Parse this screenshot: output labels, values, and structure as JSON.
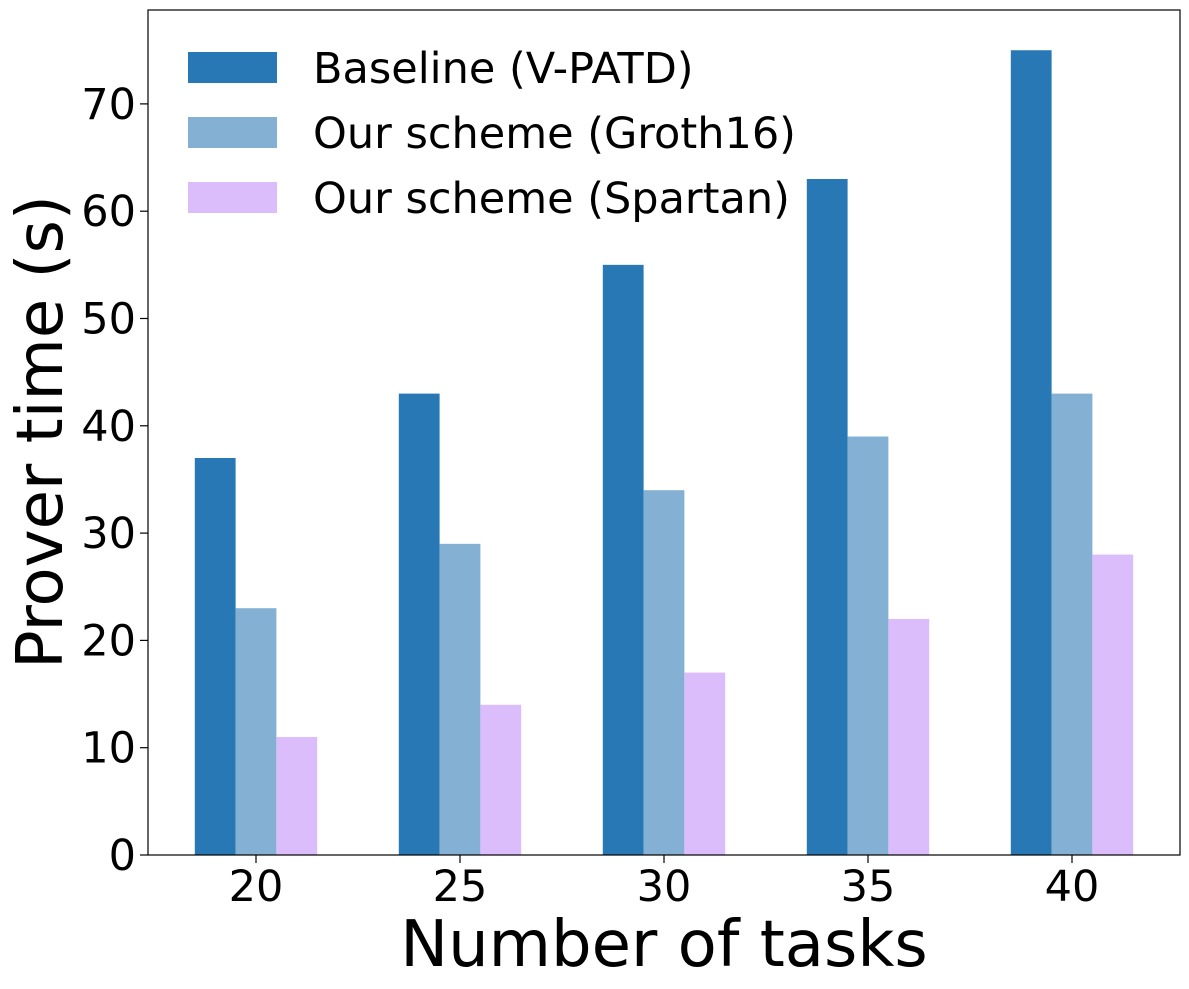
{
  "chart_data": {
    "type": "bar",
    "title": "",
    "xlabel": "Number of tasks",
    "ylabel": "Prover time (s)",
    "categories": [
      "20",
      "25",
      "30",
      "35",
      "40"
    ],
    "ylim": [
      0,
      78.75
    ],
    "yticks": [
      0,
      10,
      20,
      30,
      40,
      50,
      60,
      70
    ],
    "grid": false,
    "legend_position": "top-left",
    "series": [
      {
        "name": "Baseline (V-PATD)",
        "color": "#2878b5",
        "values": [
          37,
          43,
          55,
          63,
          75
        ]
      },
      {
        "name": "Our scheme (Groth16)",
        "color": "#84b0d3",
        "values": [
          23,
          29,
          34,
          39,
          43
        ]
      },
      {
        "name": "Our scheme (Spartan)",
        "color": "#dbbdfc",
        "values": [
          11,
          14,
          17,
          22,
          28
        ]
      }
    ]
  }
}
